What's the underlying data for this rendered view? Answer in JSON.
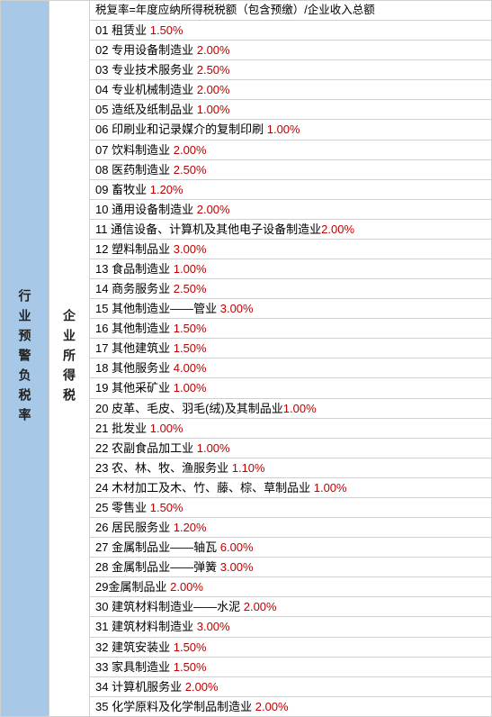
{
  "sidebar_left": "行业预警负税率",
  "sidebar_mid": "企业所得税",
  "header_formula": "税复率=年度应纳所得税税额（包含预缴）/企业收入总额",
  "pct_color": "#c00000",
  "text_color": "#000000",
  "left_bg": "#a8c8e8",
  "border_color": "#d0d0d0",
  "rows": [
    {
      "num": "01",
      "label": "租赁业",
      "pct": "1.50%"
    },
    {
      "num": "02",
      "label": "专用设备制造业",
      "pct": "2.00%"
    },
    {
      "num": "03",
      "label": "专业技术服务业",
      "pct": "2.50%"
    },
    {
      "num": "04",
      "label": "专业机械制造业",
      "pct": "2.00%"
    },
    {
      "num": "05",
      "label": "造纸及纸制品业",
      "pct": "1.00%"
    },
    {
      "num": "06",
      "label": "印刷业和记录媒介的复制印刷",
      "pct": "1.00%"
    },
    {
      "num": "07",
      "label": "饮料制造业",
      "pct": "2.00%"
    },
    {
      "num": "08",
      "label": "医药制造业",
      "pct": "2.50%"
    },
    {
      "num": "09",
      "label": "畜牧业",
      "pct": "1.20%"
    },
    {
      "num": "10",
      "label": "通用设备制造业",
      "pct": "2.00%"
    },
    {
      "num": "11",
      "label": "通信设备、计算机及其他电子设备制造业",
      "pct": "2.00%",
      "nospace": true
    },
    {
      "num": "12",
      "label": "塑料制品业",
      "pct": "3.00%"
    },
    {
      "num": "13",
      "label": "食品制造业",
      "pct": "1.00%"
    },
    {
      "num": "14",
      "label": "商务服务业",
      "pct": "2.50%"
    },
    {
      "num": "15",
      "label": "其他制造业——管业",
      "pct": "3.00%"
    },
    {
      "num": "16",
      "label": "其他制造业",
      "pct": "1.50%"
    },
    {
      "num": "17",
      "label": "其他建筑业",
      "pct": "1.50%"
    },
    {
      "num": "18",
      "label": "其他服务业",
      "pct": "4.00%"
    },
    {
      "num": "19",
      "label": "其他采矿业",
      "pct": "1.00%"
    },
    {
      "num": "20",
      "label": "皮革、毛皮、羽毛(绒)及其制品业",
      "pct": "1.00%",
      "nospace": true
    },
    {
      "num": "21",
      "label": "批发业",
      "pct": "1.00%"
    },
    {
      "num": "22",
      "label": "农副食品加工业",
      "pct": "1.00%"
    },
    {
      "num": "23",
      "label": "农、林、牧、渔服务业",
      "pct": "1.10%"
    },
    {
      "num": "24",
      "label": "木材加工及木、竹、藤、棕、草制品业",
      "pct": "1.00%"
    },
    {
      "num": "25",
      "label": "零售业",
      "pct": "1.50%"
    },
    {
      "num": "26",
      "label": "居民服务业",
      "pct": "1.20%"
    },
    {
      "num": "27",
      "label": "金属制品业——轴瓦",
      "pct": "6.00%"
    },
    {
      "num": "28",
      "label": "金属制品业——弹簧",
      "pct": "3.00%"
    },
    {
      "num": "29",
      "label": "金属制品业",
      "pct": "2.00%",
      "nospace_num": true
    },
    {
      "num": "30",
      "label": "建筑材料制造业——水泥",
      "pct": "2.00%"
    },
    {
      "num": "31",
      "label": "建筑材料制造业",
      "pct": "3.00%"
    },
    {
      "num": "32",
      "label": "建筑安装业",
      "pct": "1.50%"
    },
    {
      "num": "33",
      "label": "家具制造业",
      "pct": "1.50%"
    },
    {
      "num": "34",
      "label": "计算机服务业",
      "pct": "2.00%"
    },
    {
      "num": "35",
      "label": "化学原料及化学制品制造业",
      "pct": "2.00%"
    }
  ]
}
